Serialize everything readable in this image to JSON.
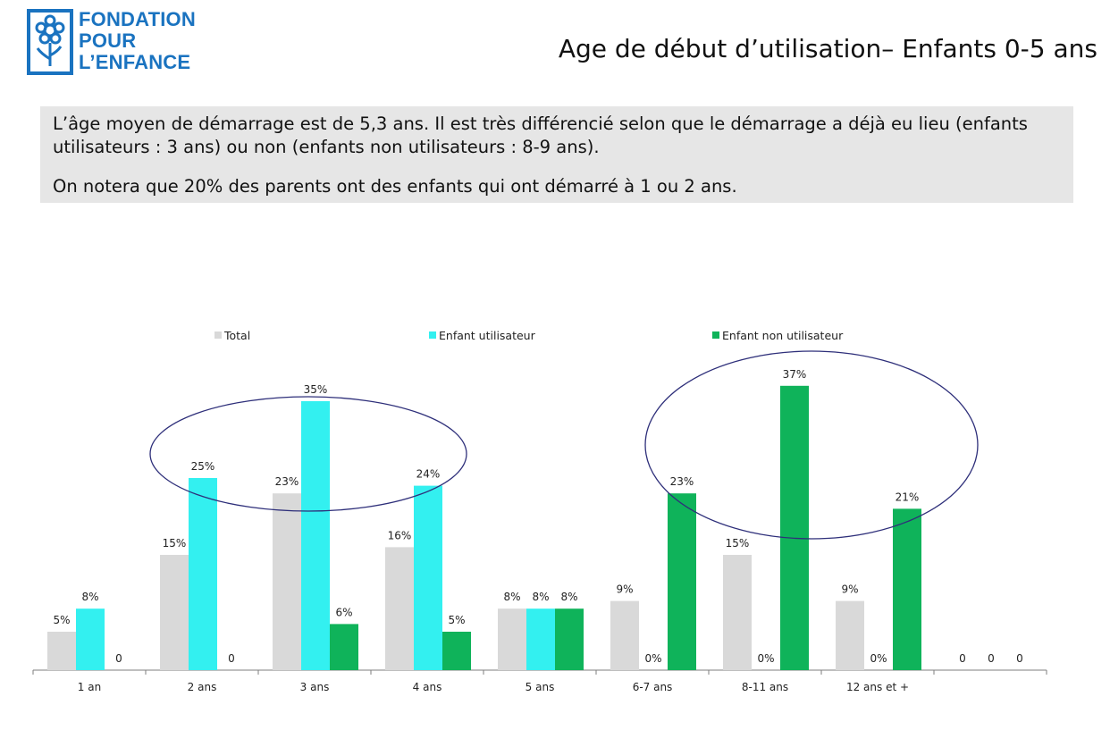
{
  "header": {
    "logo_lines": [
      "FONDATION",
      "POUR",
      "L’ENFANCE"
    ],
    "title": "Age de début d’utilisation– Enfants 0-5 ans"
  },
  "summary": {
    "paragraph1": "L’âge moyen de démarrage est de 5,3 ans. Il est très différencié selon que le démarrage a déjà eu lieu (enfants utilisateurs : 3 ans) ou non (enfants non utilisateurs : 8-9 ans).",
    "paragraph2": "On notera que 20% des parents ont des enfants qui ont démarré à 1 ou 2 ans."
  },
  "colors": {
    "total": "#d9d9d9",
    "utilisateur": "#33f0f0",
    "non_utilisateur": "#0fb35a",
    "ellipse": "#2e2f7a",
    "logo": "#1a73c0"
  },
  "chart_data": {
    "type": "bar",
    "categories": [
      "1 an",
      "2 ans",
      "3 ans",
      "4 ans",
      "5 ans",
      "6-7 ans",
      "8-11 ans",
      "12 ans et +",
      ""
    ],
    "series": [
      {
        "name": "Total",
        "values": [
          5,
          15,
          23,
          16,
          8,
          9,
          15,
          9,
          0
        ],
        "labels": [
          "5%",
          "15%",
          "23%",
          "16%",
          "8%",
          "9%",
          "15%",
          "9%",
          "0"
        ]
      },
      {
        "name": "Enfant utilisateur",
        "values": [
          8,
          25,
          35,
          24,
          8,
          0,
          0,
          0,
          0
        ],
        "labels": [
          "8%",
          "25%",
          "35%",
          "24%",
          "8%",
          "0%",
          "0%",
          "0%",
          "0"
        ]
      },
      {
        "name": "Enfant non utilisateur",
        "values": [
          0,
          0,
          6,
          5,
          8,
          23,
          37,
          21,
          0
        ],
        "labels": [
          "0",
          "0",
          "6%",
          "5%",
          "8%",
          "23%",
          "37%",
          "21%",
          "0"
        ]
      }
    ],
    "ylim": [
      0,
      37
    ],
    "legend": "top",
    "annotations": [
      "ellipse around 2-4 ans (enfants utilisateurs)",
      "ellipse around 6-12 ans (enfants non utilisateurs)"
    ],
    "grid": false
  }
}
